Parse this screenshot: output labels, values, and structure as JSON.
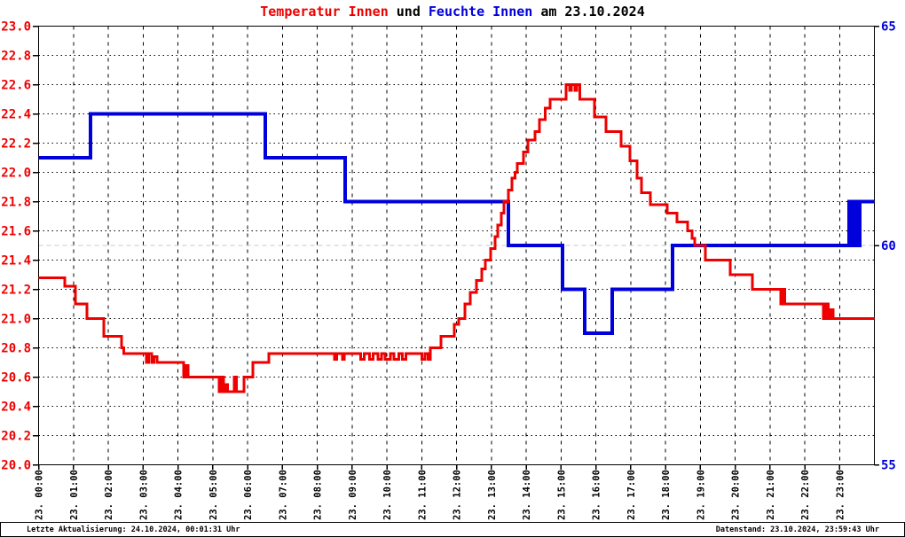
{
  "title": {
    "temperature": "Temperatur Innen",
    "connector": " und ",
    "humidity": "Feuchte Innen",
    "date_suffix": " am 23.10.2024"
  },
  "footer": {
    "left": "Letzte Aktualisierung: 24.10.2024, 00:01:31 Uhr",
    "right": "Datenstand: 23.10.2024, 23:59:43 Uhr"
  },
  "colors": {
    "temperature": "#ee0000",
    "humidity": "#0000dd",
    "axis": "#000000",
    "grid": "#000000",
    "humidity_60_gridline": "#c8c8c8",
    "background": "#ffffff"
  },
  "chart_data": {
    "type": "line",
    "title": "Temperatur Innen und Feuchte Innen am 23.10.2024",
    "grid": {
      "horizontal_dotted": true,
      "vertical_dashed": true,
      "gray_line_at_right_value": 60
    },
    "x_axis": {
      "range_hours": [
        0,
        24
      ],
      "tick_every_hours": 1,
      "labels": [
        "23. 00:00",
        "23. 01:00",
        "23. 02:00",
        "23. 03:00",
        "23. 04:00",
        "23. 05:00",
        "23. 06:00",
        "23. 07:00",
        "23. 08:00",
        "23. 09:00",
        "23. 10:00",
        "23. 11:00",
        "23. 12:00",
        "23. 13:00",
        "23. 14:00",
        "23. 15:00",
        "23. 16:00",
        "23. 17:00",
        "23. 18:00",
        "23. 19:00",
        "23. 20:00",
        "23. 21:00",
        "23. 22:00",
        "23. 23:00"
      ]
    },
    "y_left": {
      "min": 20.0,
      "max": 23.0,
      "step": 0.2,
      "color": "#ee0000",
      "tick_labels": [
        "23.0",
        "22.8",
        "22.6",
        "22.4",
        "22.2",
        "22.0",
        "21.8",
        "21.6",
        "21.4",
        "21.2",
        "21.0",
        "20.8",
        "20.6",
        "20.4",
        "20.2",
        "20.0"
      ]
    },
    "y_right": {
      "min": 55,
      "max": 65,
      "color": "#0000dd",
      "tick_labels": [
        "65",
        "60",
        "55"
      ],
      "tick_values": [
        65,
        60,
        55
      ]
    },
    "series": [
      {
        "name": "Feuchte Innen",
        "axis": "right",
        "unit": "%",
        "color": "#0000dd",
        "width": 4,
        "step": true,
        "points": [
          [
            0,
            62
          ],
          [
            1.49,
            63
          ],
          [
            6.51,
            62
          ],
          [
            8.8,
            61
          ],
          [
            13.49,
            60
          ],
          [
            15.04,
            59
          ],
          [
            15.68,
            58
          ],
          [
            16.47,
            59
          ],
          [
            18.2,
            60
          ],
          [
            23.27,
            61
          ],
          [
            23.32,
            60
          ],
          [
            23.36,
            61
          ],
          [
            23.42,
            60
          ],
          [
            23.48,
            61
          ],
          [
            23.53,
            60
          ],
          [
            23.58,
            61
          ],
          [
            24,
            61
          ]
        ]
      },
      {
        "name": "Temperatur Innen",
        "axis": "left",
        "unit": "°C",
        "color": "#ee0000",
        "width": 3,
        "step": true,
        "points": [
          [
            0,
            21.28
          ],
          [
            0.75,
            21.22
          ],
          [
            1.06,
            21.1
          ],
          [
            1.39,
            21.0
          ],
          [
            1.87,
            20.88
          ],
          [
            2.38,
            20.8
          ],
          [
            2.45,
            20.76
          ],
          [
            3.1,
            20.7
          ],
          [
            3.16,
            20.76
          ],
          [
            3.25,
            20.7
          ],
          [
            3.31,
            20.74
          ],
          [
            3.4,
            20.7
          ],
          [
            4.17,
            20.6
          ],
          [
            4.23,
            20.68
          ],
          [
            4.29,
            20.6
          ],
          [
            5.19,
            20.5
          ],
          [
            5.25,
            20.6
          ],
          [
            5.31,
            20.5
          ],
          [
            5.37,
            20.55
          ],
          [
            5.43,
            20.5
          ],
          [
            5.62,
            20.6
          ],
          [
            5.68,
            20.5
          ],
          [
            5.9,
            20.6
          ],
          [
            6.15,
            20.7
          ],
          [
            6.61,
            20.76
          ],
          [
            8.5,
            20.72
          ],
          [
            8.56,
            20.76
          ],
          [
            8.72,
            20.72
          ],
          [
            8.78,
            20.76
          ],
          [
            9.25,
            20.72
          ],
          [
            9.35,
            20.76
          ],
          [
            9.5,
            20.72
          ],
          [
            9.6,
            20.76
          ],
          [
            9.75,
            20.72
          ],
          [
            9.85,
            20.76
          ],
          [
            9.95,
            20.72
          ],
          [
            10.1,
            20.76
          ],
          [
            10.2,
            20.72
          ],
          [
            10.35,
            20.76
          ],
          [
            10.45,
            20.72
          ],
          [
            10.55,
            20.76
          ],
          [
            11.0,
            20.72
          ],
          [
            11.1,
            20.76
          ],
          [
            11.18,
            20.72
          ],
          [
            11.25,
            20.8
          ],
          [
            11.55,
            20.88
          ],
          [
            11.93,
            20.96
          ],
          [
            12.06,
            21.0
          ],
          [
            12.24,
            21.1
          ],
          [
            12.4,
            21.18
          ],
          [
            12.57,
            21.26
          ],
          [
            12.72,
            21.34
          ],
          [
            12.83,
            21.4
          ],
          [
            12.98,
            21.48
          ],
          [
            13.11,
            21.56
          ],
          [
            13.18,
            21.64
          ],
          [
            13.29,
            21.72
          ],
          [
            13.36,
            21.8
          ],
          [
            13.49,
            21.88
          ],
          [
            13.59,
            21.96
          ],
          [
            13.68,
            22.0
          ],
          [
            13.75,
            22.06
          ],
          [
            13.92,
            22.14
          ],
          [
            14.05,
            22.22
          ],
          [
            14.26,
            22.28
          ],
          [
            14.38,
            22.36
          ],
          [
            14.55,
            22.44
          ],
          [
            14.69,
            22.5
          ],
          [
            15.15,
            22.6
          ],
          [
            15.25,
            22.56
          ],
          [
            15.3,
            22.6
          ],
          [
            15.4,
            22.56
          ],
          [
            15.45,
            22.6
          ],
          [
            15.54,
            22.5
          ],
          [
            15.96,
            22.38
          ],
          [
            16.29,
            22.28
          ],
          [
            16.73,
            22.18
          ],
          [
            16.98,
            22.08
          ],
          [
            17.19,
            21.96
          ],
          [
            17.31,
            21.86
          ],
          [
            17.57,
            21.78
          ],
          [
            18.05,
            21.72
          ],
          [
            18.33,
            21.66
          ],
          [
            18.64,
            21.6
          ],
          [
            18.76,
            21.55
          ],
          [
            18.84,
            21.5
          ],
          [
            19.15,
            21.4
          ],
          [
            19.86,
            21.3
          ],
          [
            20.5,
            21.2
          ],
          [
            21.31,
            21.1
          ],
          [
            21.37,
            21.2
          ],
          [
            21.43,
            21.1
          ],
          [
            22.53,
            21.0
          ],
          [
            22.6,
            21.1
          ],
          [
            22.67,
            21.0
          ],
          [
            22.75,
            21.06
          ],
          [
            22.82,
            21.0
          ],
          [
            24,
            21.0
          ]
        ]
      }
    ]
  }
}
